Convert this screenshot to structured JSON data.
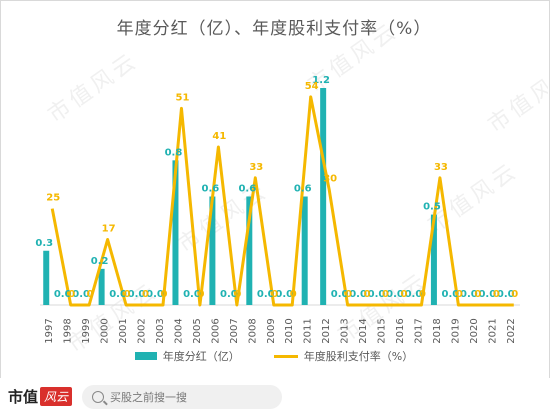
{
  "chart_data": {
    "type": "bar",
    "title": "年度分红（亿）、年度股利支付率（%）",
    "categories": [
      "1997",
      "1998",
      "1999",
      "2000",
      "2001",
      "2002",
      "2003",
      "2004",
      "2005",
      "2006",
      "2007",
      "2008",
      "2009",
      "2010",
      "2011",
      "2012",
      "2013",
      "2014",
      "2015",
      "2016",
      "2017",
      "2018",
      "2019",
      "2020",
      "2021",
      "2022"
    ],
    "series": [
      {
        "name": "年度分红（亿）",
        "kind": "bar",
        "color": "#20b2b2",
        "values": [
          0.3,
          0,
          0,
          0.2,
          0,
          0,
          0,
          0.8,
          0,
          0.6,
          0,
          0.6,
          0,
          0,
          0.6,
          1.2,
          0,
          0,
          0,
          0,
          0,
          0.5,
          0,
          0,
          0,
          0
        ]
      },
      {
        "name": "年度股利支付率（%）",
        "kind": "line",
        "color": "#f5b800",
        "values": [
          25,
          0,
          0,
          17,
          0,
          0,
          0,
          51,
          0,
          41,
          0,
          33,
          0,
          0,
          54,
          30,
          0,
          0,
          0,
          0,
          0,
          33,
          0,
          0,
          0,
          0
        ]
      }
    ],
    "bar_ylim": [
      0,
      1.2
    ],
    "line_ylim": [
      0,
      55
    ],
    "bar_label_color": "#20b2b2",
    "line_label_color": "#f5b800",
    "legend_position": "bottom",
    "grid": false
  },
  "watermark": "市值风云",
  "footer": {
    "logo_text": "市值",
    "logo_badge": "风云",
    "search_placeholder": "买股之前搜一搜"
  }
}
